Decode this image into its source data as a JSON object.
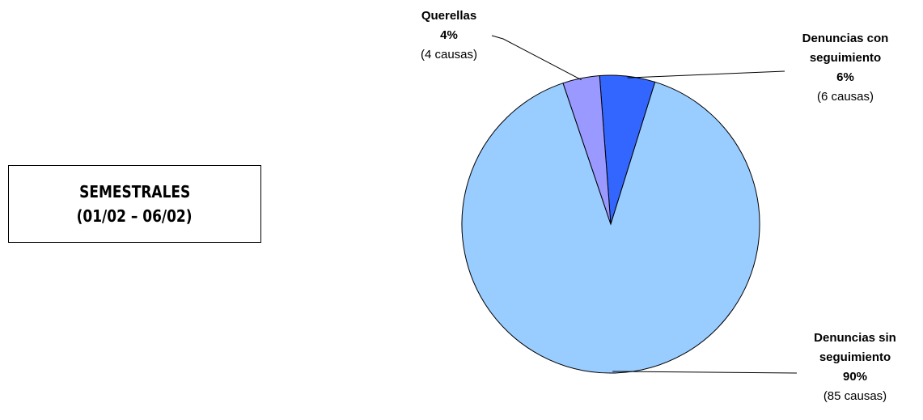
{
  "chart_data": {
    "type": "pie",
    "categories": [
      "Denuncias con seguimiento",
      "Denuncias sin seguimiento",
      "Querellas"
    ],
    "values": [
      6,
      90,
      4
    ],
    "value_labels": [
      "6%",
      "90%",
      "4%"
    ],
    "count_labels": [
      "(6 causas)",
      "(85 causas)",
      "(4 causas)"
    ],
    "colors": [
      "#3366ff",
      "#99ccff",
      "#9999ff"
    ]
  },
  "box": {
    "lines": [
      "SEMESTRALES",
      "(01/02 – 06/02)"
    ]
  }
}
